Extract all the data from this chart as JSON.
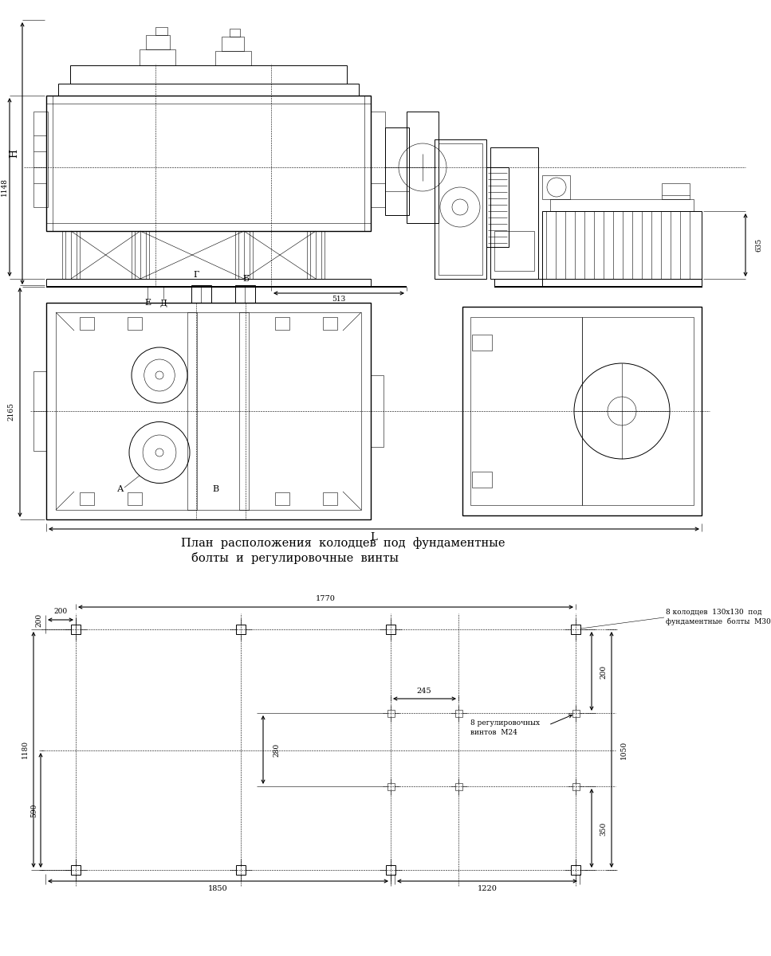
{
  "bg_color": "#ffffff",
  "title_text1": "План  расположения  колодцев  под  фундаментные",
  "title_text2": "болты  и  регулировочные  винты",
  "dim_H": "H",
  "dim_1148": "1148",
  "dim_635": "635",
  "dim_513": "513",
  "dim_E": "Е",
  "dim_D": "Д",
  "dim_2165": "2165",
  "dim_G": "Г",
  "dim_B_upper": "Б",
  "dim_L": "L",
  "dim_A": "А",
  "dim_B_lower": "В",
  "dim_200top": "200",
  "dim_1770": "1770",
  "dim_245": "245",
  "dim_8kolodtsev": "8 колодцев  130х130  под",
  "dim_bolty": "фундаментные  болты  М30",
  "dim_8vintov": "8 регулировочных",
  "dim_vintov": "винтов  М24",
  "dim_1180": "1180",
  "dim_590": "590",
  "dim_280": "280",
  "dim_200b": "200",
  "dim_350": "350",
  "dim_1050": "1050",
  "dim_1850": "1850",
  "dim_1220": "1220"
}
